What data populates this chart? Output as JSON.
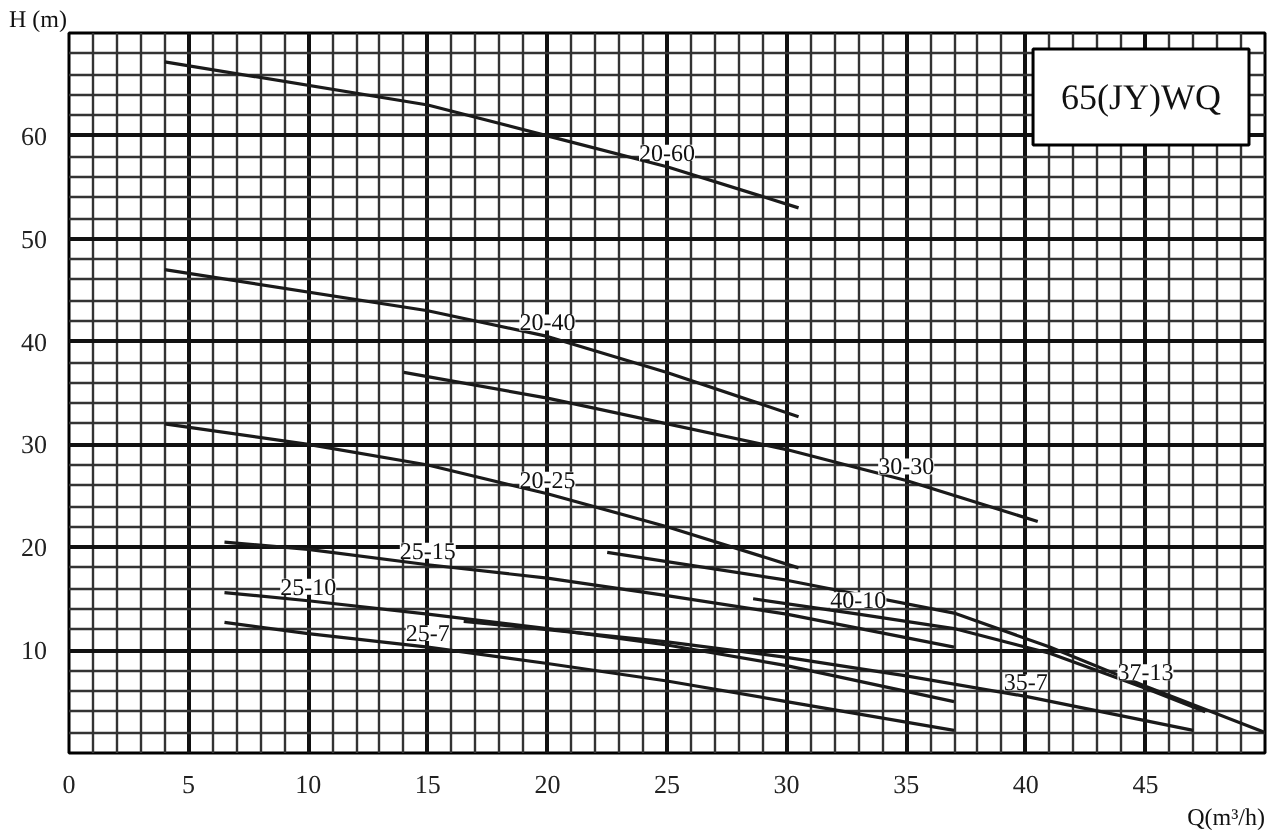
{
  "chart_data": {
    "type": "line",
    "title": "65(JY)WQ",
    "xlabel": "Q(m³/h)",
    "ylabel": "H (m)",
    "xlim": [
      0,
      50
    ],
    "ylim": [
      0,
      70
    ],
    "xticks": [
      0,
      5,
      10,
      15,
      20,
      25,
      30,
      35,
      40,
      45
    ],
    "yticks": [
      10,
      20,
      30,
      40,
      50,
      60
    ],
    "grid": true,
    "marker": "none",
    "line_style": "solid",
    "series": [
      {
        "color": "#1a1a1a",
        "x": [
          4,
          15,
          20,
          25,
          30.5
        ],
        "values": [
          67.2,
          63,
          60,
          57,
          53
        ]
      },
      {
        "color": "#1a1a1a",
        "x": [
          4,
          15,
          20,
          25,
          30.5
        ],
        "values": [
          47,
          43,
          40.5,
          37,
          32.7
        ]
      },
      {
        "color": "#1a1a1a",
        "x": [
          14,
          20,
          30,
          35,
          40.5
        ],
        "values": [
          37,
          34.5,
          29.5,
          26.5,
          22.5
        ]
      },
      {
        "color": "#1a1a1a",
        "x": [
          4,
          10,
          15,
          20,
          25,
          30.5
        ],
        "values": [
          32,
          30,
          28,
          25.2,
          22,
          18
        ]
      },
      {
        "color": "#1a1a1a",
        "x": [
          6.5,
          10,
          15,
          20,
          25,
          30,
          37
        ],
        "values": [
          20.5,
          19.8,
          18.3,
          17,
          15.3,
          13.5,
          10.3
        ]
      },
      {
        "color": "#1a1a1a",
        "x": [
          6.5,
          10,
          15,
          20,
          25,
          30,
          37
        ],
        "values": [
          15.6,
          14.8,
          13.5,
          12.1,
          10.5,
          8.5,
          5
        ]
      },
      {
        "color": "#1a1a1a",
        "x": [
          6.5,
          10,
          15,
          20,
          25,
          30,
          37
        ],
        "values": [
          12.7,
          11.6,
          10.3,
          8.7,
          7,
          5,
          2.2
        ]
      },
      {
        "color": "#1a1a1a",
        "x": [
          16.5,
          20,
          25,
          30,
          35,
          40,
          47
        ],
        "values": [
          12.8,
          12,
          10.8,
          9.3,
          7.5,
          5.5,
          2.2
        ]
      },
      {
        "color": "#1a1a1a",
        "x": [
          22.5,
          30,
          37,
          41,
          45,
          50
        ],
        "values": [
          19.5,
          16.8,
          13.6,
          10.3,
          6.5,
          2
        ]
      },
      {
        "color": "#1a1a1a",
        "x": [
          28.6,
          33,
          37,
          41,
          45,
          47.5
        ],
        "values": [
          15,
          13.5,
          12.1,
          9.7,
          6.3,
          4
        ]
      }
    ],
    "annotations": [
      {
        "text": "20-60",
        "x": 25,
        "y": 57
      },
      {
        "text": "20-40",
        "x": 20,
        "y": 40.5
      },
      {
        "text": "30-30",
        "x": 35,
        "y": 26.5
      },
      {
        "text": "20-25",
        "x": 20,
        "y": 25.2
      },
      {
        "text": "25-15",
        "x": 15,
        "y": 18.3
      },
      {
        "text": "25-10",
        "x": 10,
        "y": 14.8
      },
      {
        "text": "25-7",
        "x": 15,
        "y": 10.3
      },
      {
        "text": "40-10",
        "x": 33,
        "y": 13.5
      },
      {
        "text": "37-13",
        "x": 45,
        "y": 6.5
      },
      {
        "text": "35-7",
        "x": 40,
        "y": 5.5
      }
    ]
  }
}
